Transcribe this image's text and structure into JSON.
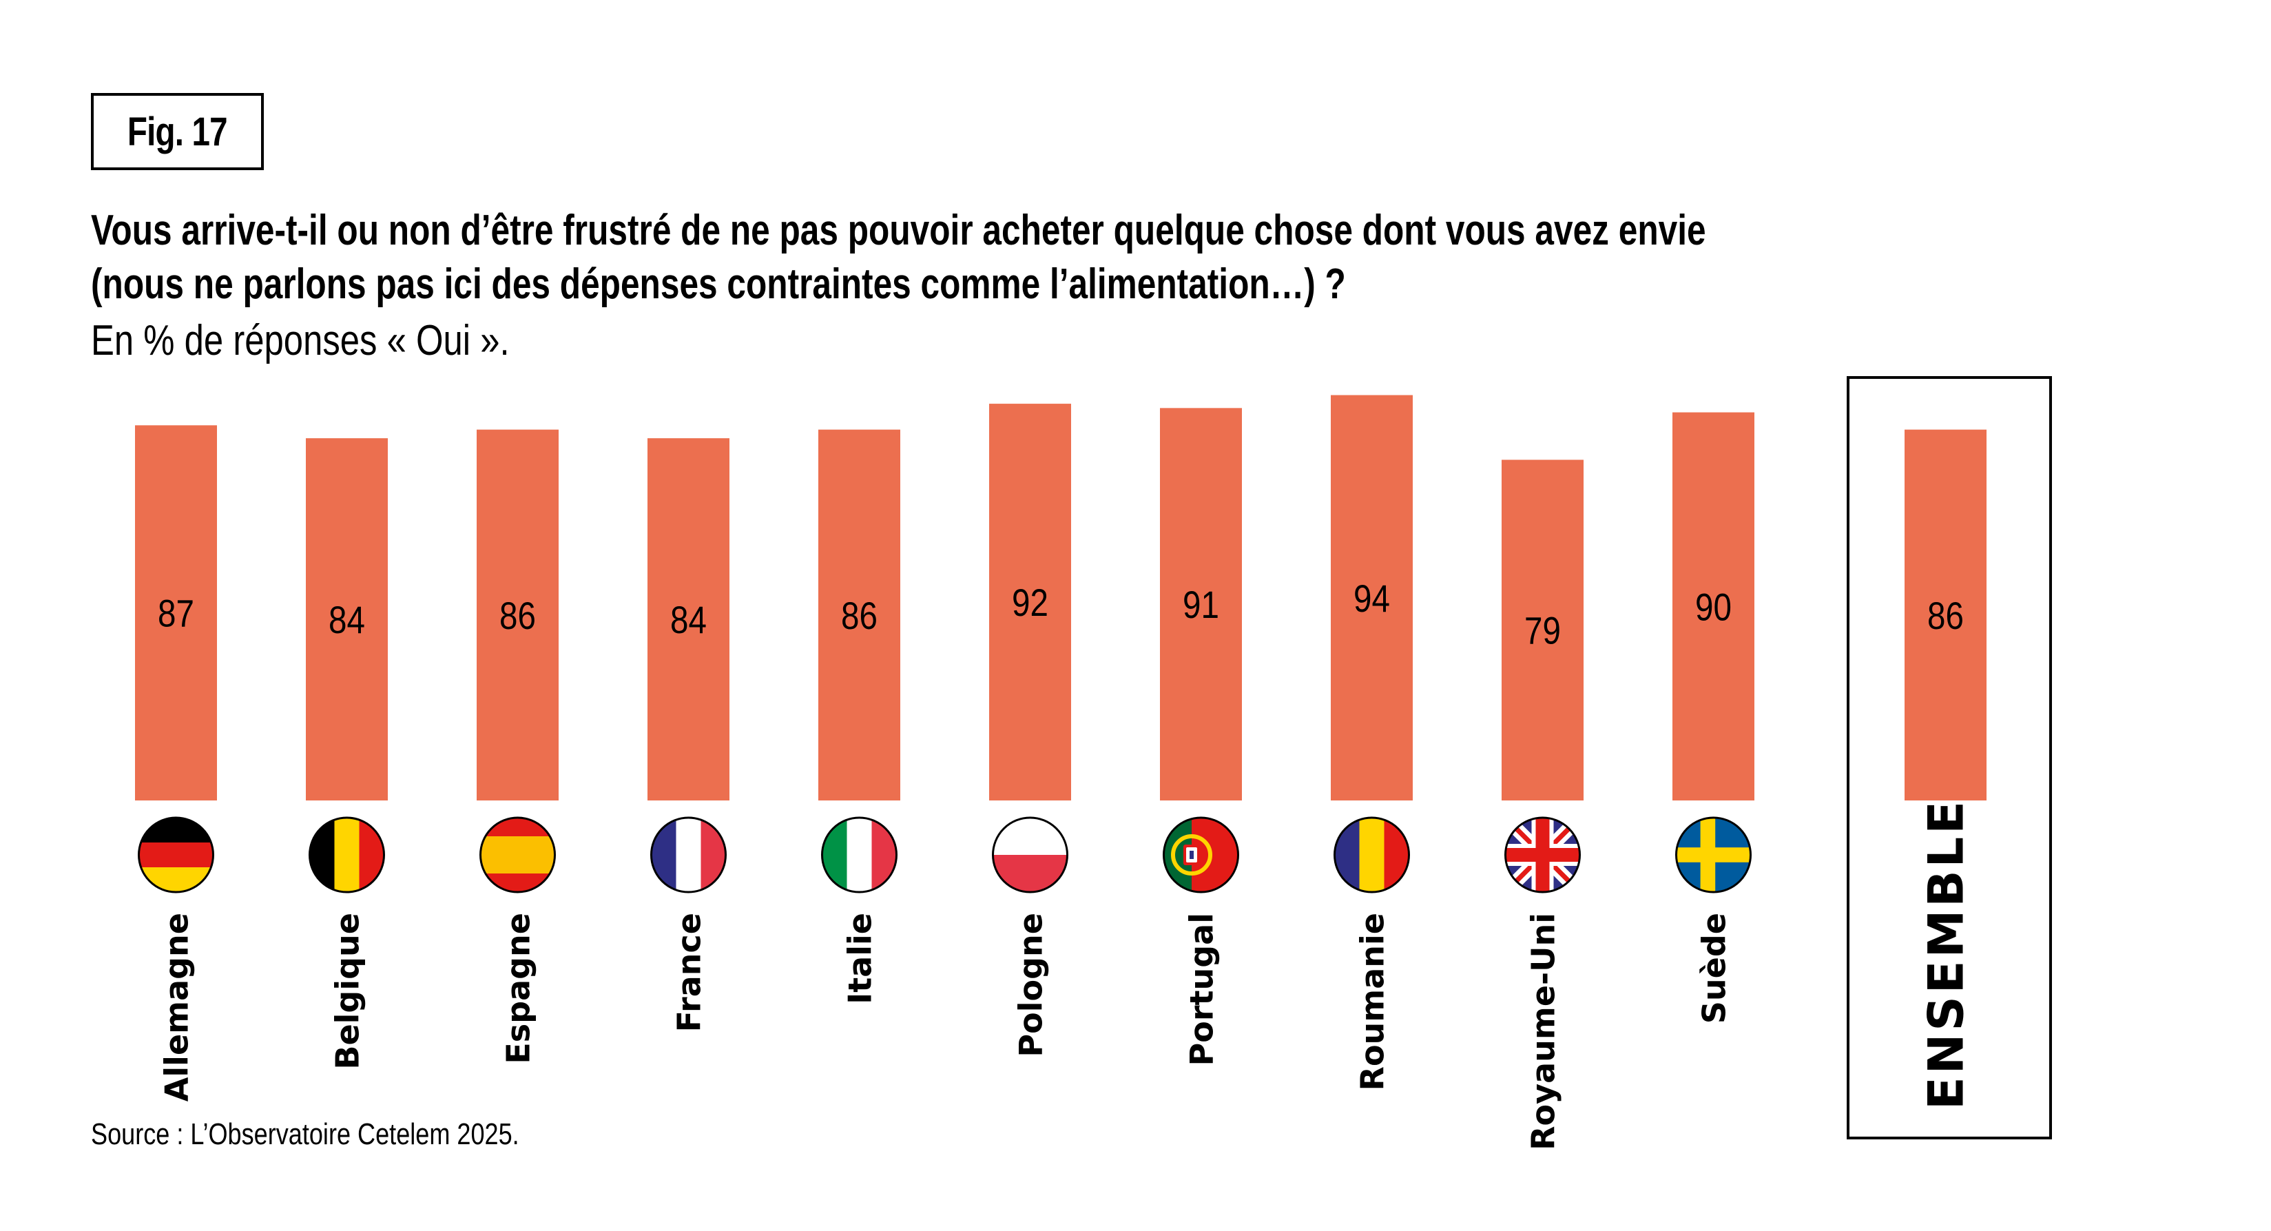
{
  "figure": {
    "label": "Fig. 17",
    "title_line1": "Vous arrive-t-il ou non d’être frustré de ne pas pouvoir acheter quelque chose dont vous avez envie",
    "title_line2": "(nous ne parlons pas ici des dépenses contraintes comme l’alimentation…) ?",
    "subtitle": "En % de réponses « Oui ».",
    "source": "Source : L’Observatoire Cetelem 2025."
  },
  "colors": {
    "bar": "#EC6F4F",
    "text": "#000000",
    "frame": "#000000"
  },
  "chart_data": {
    "type": "bar",
    "title": "Vous arrive-t-il ou non d’être frustré de ne pas pouvoir acheter quelque chose dont vous avez envie (nous ne parlons pas ici des dépenses contraintes comme l’alimentation…) ?",
    "subtitle": "En % de réponses « Oui ».",
    "xlabel": "",
    "ylabel": "",
    "ylim": [
      0,
      100
    ],
    "grid": false,
    "unit": "%",
    "categories": [
      "Allemagne",
      "Belgique",
      "Espagne",
      "France",
      "Italie",
      "Pologne",
      "Portugal",
      "Roumanie",
      "Royaume-Uni",
      "Suède",
      "ENSEMBLE"
    ],
    "values": [
      87,
      84,
      86,
      84,
      86,
      92,
      91,
      94,
      79,
      90,
      86
    ],
    "flags": [
      "germany-flag",
      "belgium-flag",
      "spain-flag",
      "france-flag",
      "italy-flag",
      "poland-flag",
      "portugal-flag",
      "romania-flag",
      "uk-flag",
      "sweden-flag",
      null
    ],
    "highlighted_category": "ENSEMBLE",
    "data_labels": true
  }
}
